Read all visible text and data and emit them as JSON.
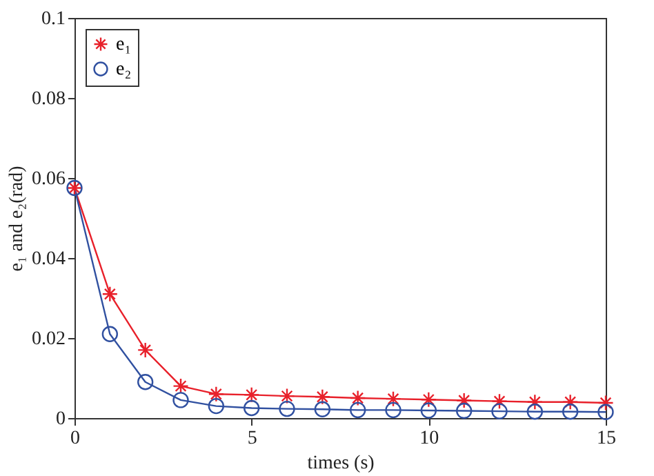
{
  "chart_data": {
    "type": "line",
    "xlabel": "times (s)",
    "ylabel": "e₁ and e₂(rad)",
    "x": [
      0,
      1,
      2,
      3,
      4,
      5,
      6,
      7,
      8,
      9,
      10,
      11,
      12,
      13,
      14,
      15
    ],
    "series": [
      {
        "name": "e₁",
        "color": "#e8202a",
        "marker": "cross",
        "values": [
          0.0575,
          0.031,
          0.017,
          0.008,
          0.006,
          0.0058,
          0.0055,
          0.0053,
          0.005,
          0.0048,
          0.0046,
          0.0044,
          0.0042,
          0.004,
          0.004,
          0.0038
        ]
      },
      {
        "name": "e₂",
        "color": "#3050a0",
        "marker": "circle",
        "values": [
          0.0575,
          0.021,
          0.009,
          0.0045,
          0.003,
          0.0025,
          0.0023,
          0.0022,
          0.002,
          0.002,
          0.0019,
          0.0018,
          0.0017,
          0.0016,
          0.0016,
          0.0015
        ]
      }
    ],
    "xlim": [
      0,
      15
    ],
    "xticks": [
      0,
      5,
      10,
      15
    ],
    "ylim": [
      0,
      0.1
    ],
    "yticks": [
      0,
      0.02,
      0.04,
      0.06,
      0.08,
      0.1
    ],
    "grid": false,
    "legend": "top left",
    "line_style": "solid"
  }
}
